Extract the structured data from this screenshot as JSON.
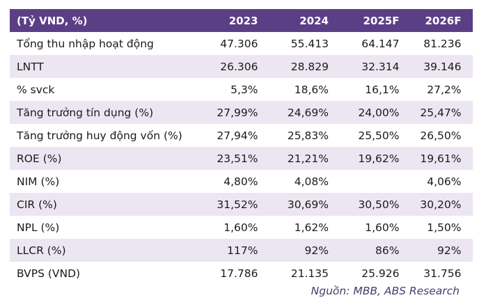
{
  "header": {
    "label": "(Tỷ VND, %)",
    "years": [
      "2023",
      "2024",
      "2025F",
      "2026F"
    ]
  },
  "rows": [
    {
      "label": "Tổng thu nhập hoạt động",
      "values": [
        "47.306",
        "55.413",
        "64.147",
        "81.236"
      ]
    },
    {
      "label": "LNTT",
      "values": [
        "26.306",
        "28.829",
        "32.314",
        "39.146"
      ]
    },
    {
      "label": "% svck",
      "values": [
        "5,3%",
        "18,6%",
        "16,1%",
        "27,2%"
      ]
    },
    {
      "label": "Tăng trưởng tín dụng (%)",
      "values": [
        "27,99%",
        "24,69%",
        "24,00%",
        "25,47%"
      ]
    },
    {
      "label": "Tăng trưởng huy động vốn (%)",
      "values": [
        "27,94%",
        "25,83%",
        "25,50%",
        "26,50%"
      ]
    },
    {
      "label": "ROE (%)",
      "values": [
        "23,51%",
        "21,21%",
        "19,62%",
        "19,61%"
      ]
    },
    {
      "label": "NIM (%)",
      "values": [
        "4,80%",
        "4,08%",
        "",
        "4,06%"
      ]
    },
    {
      "label": "CIR (%)",
      "values": [
        "31,52%",
        "30,69%",
        "30,50%",
        "30,20%"
      ]
    },
    {
      "label": "NPL (%)",
      "values": [
        "1,60%",
        "1,62%",
        "1,60%",
        "1,50%"
      ]
    },
    {
      "label": "LLCR (%)",
      "values": [
        "117%",
        "92%",
        "86%",
        "92%"
      ]
    },
    {
      "label": "BVPS (VND)",
      "values": [
        "17.786",
        "21.135",
        "25.926",
        "31.756"
      ]
    }
  ],
  "source": "Nguồn: MBB, ABS Research",
  "colors": {
    "header_bg": "#5b3f86",
    "row_shade": "#ece6f3",
    "source_text": "#4b3a6e"
  }
}
